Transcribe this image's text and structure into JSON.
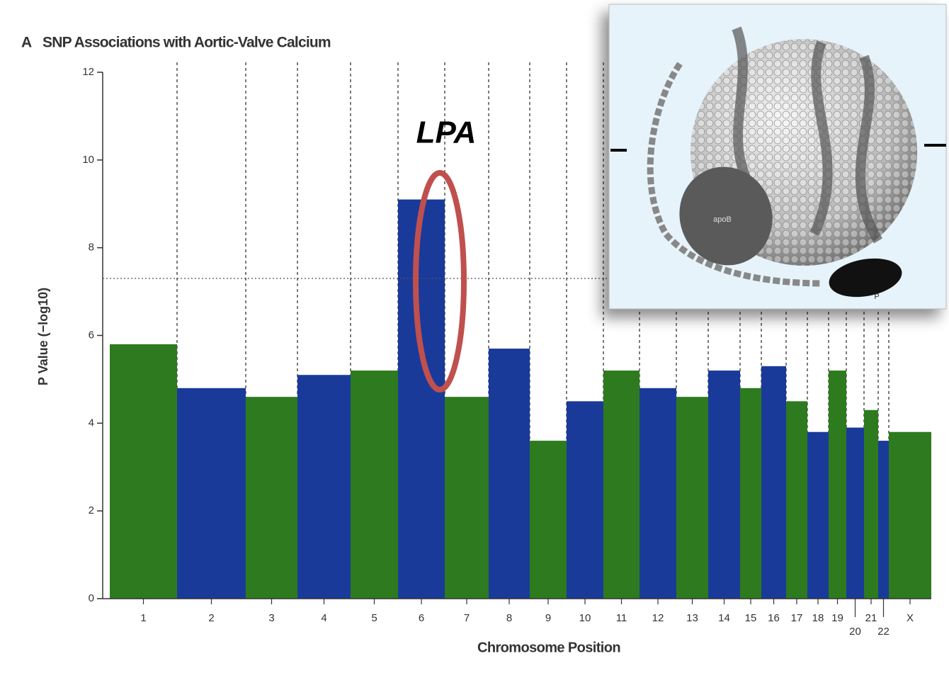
{
  "chart_data": {
    "type": "manhattan",
    "panel_letter": "A",
    "title": "SNP Associations with Aortic-Valve Calcium",
    "xlabel": "Chromosome Position",
    "ylabel": "P Value (−log10)",
    "categories": [
      "1",
      "2",
      "3",
      "4",
      "5",
      "6",
      "7",
      "8",
      "9",
      "10",
      "11",
      "12",
      "13",
      "14",
      "15",
      "16",
      "17",
      "18",
      "19",
      "20",
      "21",
      "22",
      "X"
    ],
    "values": [
      5.8,
      4.8,
      4.6,
      5.1,
      5.2,
      9.1,
      4.6,
      5.7,
      3.6,
      4.5,
      5.2,
      4.8,
      4.6,
      5.2,
      4.8,
      5.3,
      4.5,
      3.8,
      5.2,
      3.9,
      4.3,
      3.6,
      3.8
    ],
    "colors": [
      "#2e7a1f",
      "#1a3a9a"
    ],
    "ylim": [
      0,
      12
    ],
    "yticks": [
      0,
      2,
      4,
      6,
      8,
      10,
      12
    ],
    "threshold": 7.3,
    "annotation": "LPA",
    "inset": {
      "labels": [
        "apoB",
        "P"
      ]
    }
  }
}
